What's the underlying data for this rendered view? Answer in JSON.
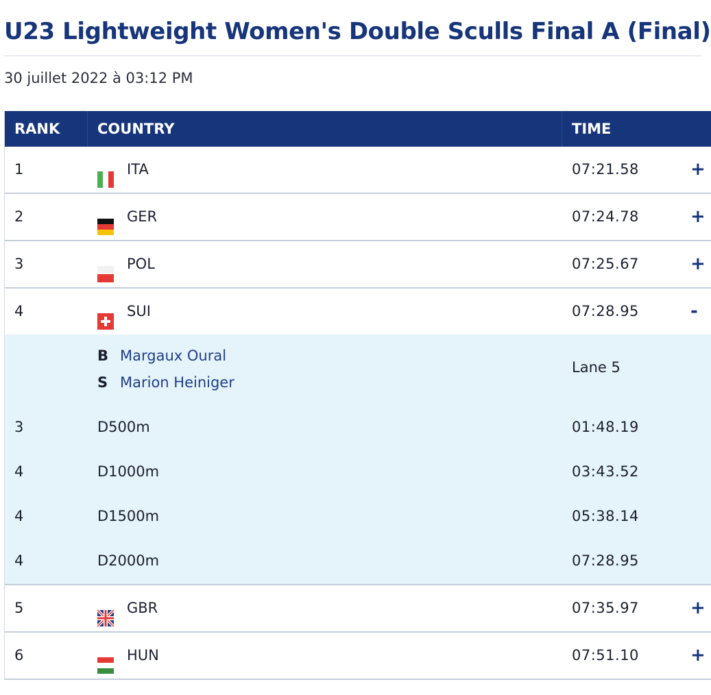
{
  "title": "U23 Lightweight Women's Double Sculls Final A (Final)",
  "date": "30 juillet 2022 à 03:12 PM",
  "headers": {
    "rank": "RANK",
    "country": "COUNTRY",
    "time": "TIME"
  },
  "rows": [
    {
      "rank": "1",
      "code": "ITA",
      "time": "07:21.58",
      "toggle": "+"
    },
    {
      "rank": "2",
      "code": "GER",
      "time": "07:24.78",
      "toggle": "+"
    },
    {
      "rank": "3",
      "code": "POL",
      "time": "07:25.67",
      "toggle": "+"
    },
    {
      "rank": "4",
      "code": "SUI",
      "time": "07:28.95",
      "toggle": "-"
    },
    {
      "rank": "5",
      "code": "GBR",
      "time": "07:35.97",
      "toggle": "+"
    },
    {
      "rank": "6",
      "code": "HUN",
      "time": "07:51.10",
      "toggle": "+"
    }
  ],
  "detail": {
    "crew": [
      {
        "pos": "B",
        "name": "Margaux Oural"
      },
      {
        "pos": "S",
        "name": "Marion Heiniger"
      }
    ],
    "lane": "Lane 5",
    "splits": [
      {
        "rank": "3",
        "distance": "D500m",
        "time": "01:48.19"
      },
      {
        "rank": "4",
        "distance": "D1000m",
        "time": "03:43.52"
      },
      {
        "rank": "4",
        "distance": "D1500m",
        "time": "05:38.14"
      },
      {
        "rank": "4",
        "distance": "D2000m",
        "time": "07:28.95"
      }
    ]
  },
  "flags": {
    "ITA": [
      "#4caf50",
      "#ffffff",
      "#e53935"
    ],
    "GER": [
      "#111111",
      "#e53935",
      "#f5c400"
    ],
    "POL": [
      "#ffffff",
      "#e53935"
    ],
    "SUI": [
      "#e53935",
      "#ffffff"
    ],
    "GBR": [
      "#1f3f8a",
      "#ffffff",
      "#e53935"
    ],
    "HUN": [
      "#e53935",
      "#ffffff",
      "#388e3c"
    ]
  },
  "colors": {
    "header_bg": "#17357a",
    "title": "#17357a",
    "detail_bg": "#e5f3fa"
  }
}
